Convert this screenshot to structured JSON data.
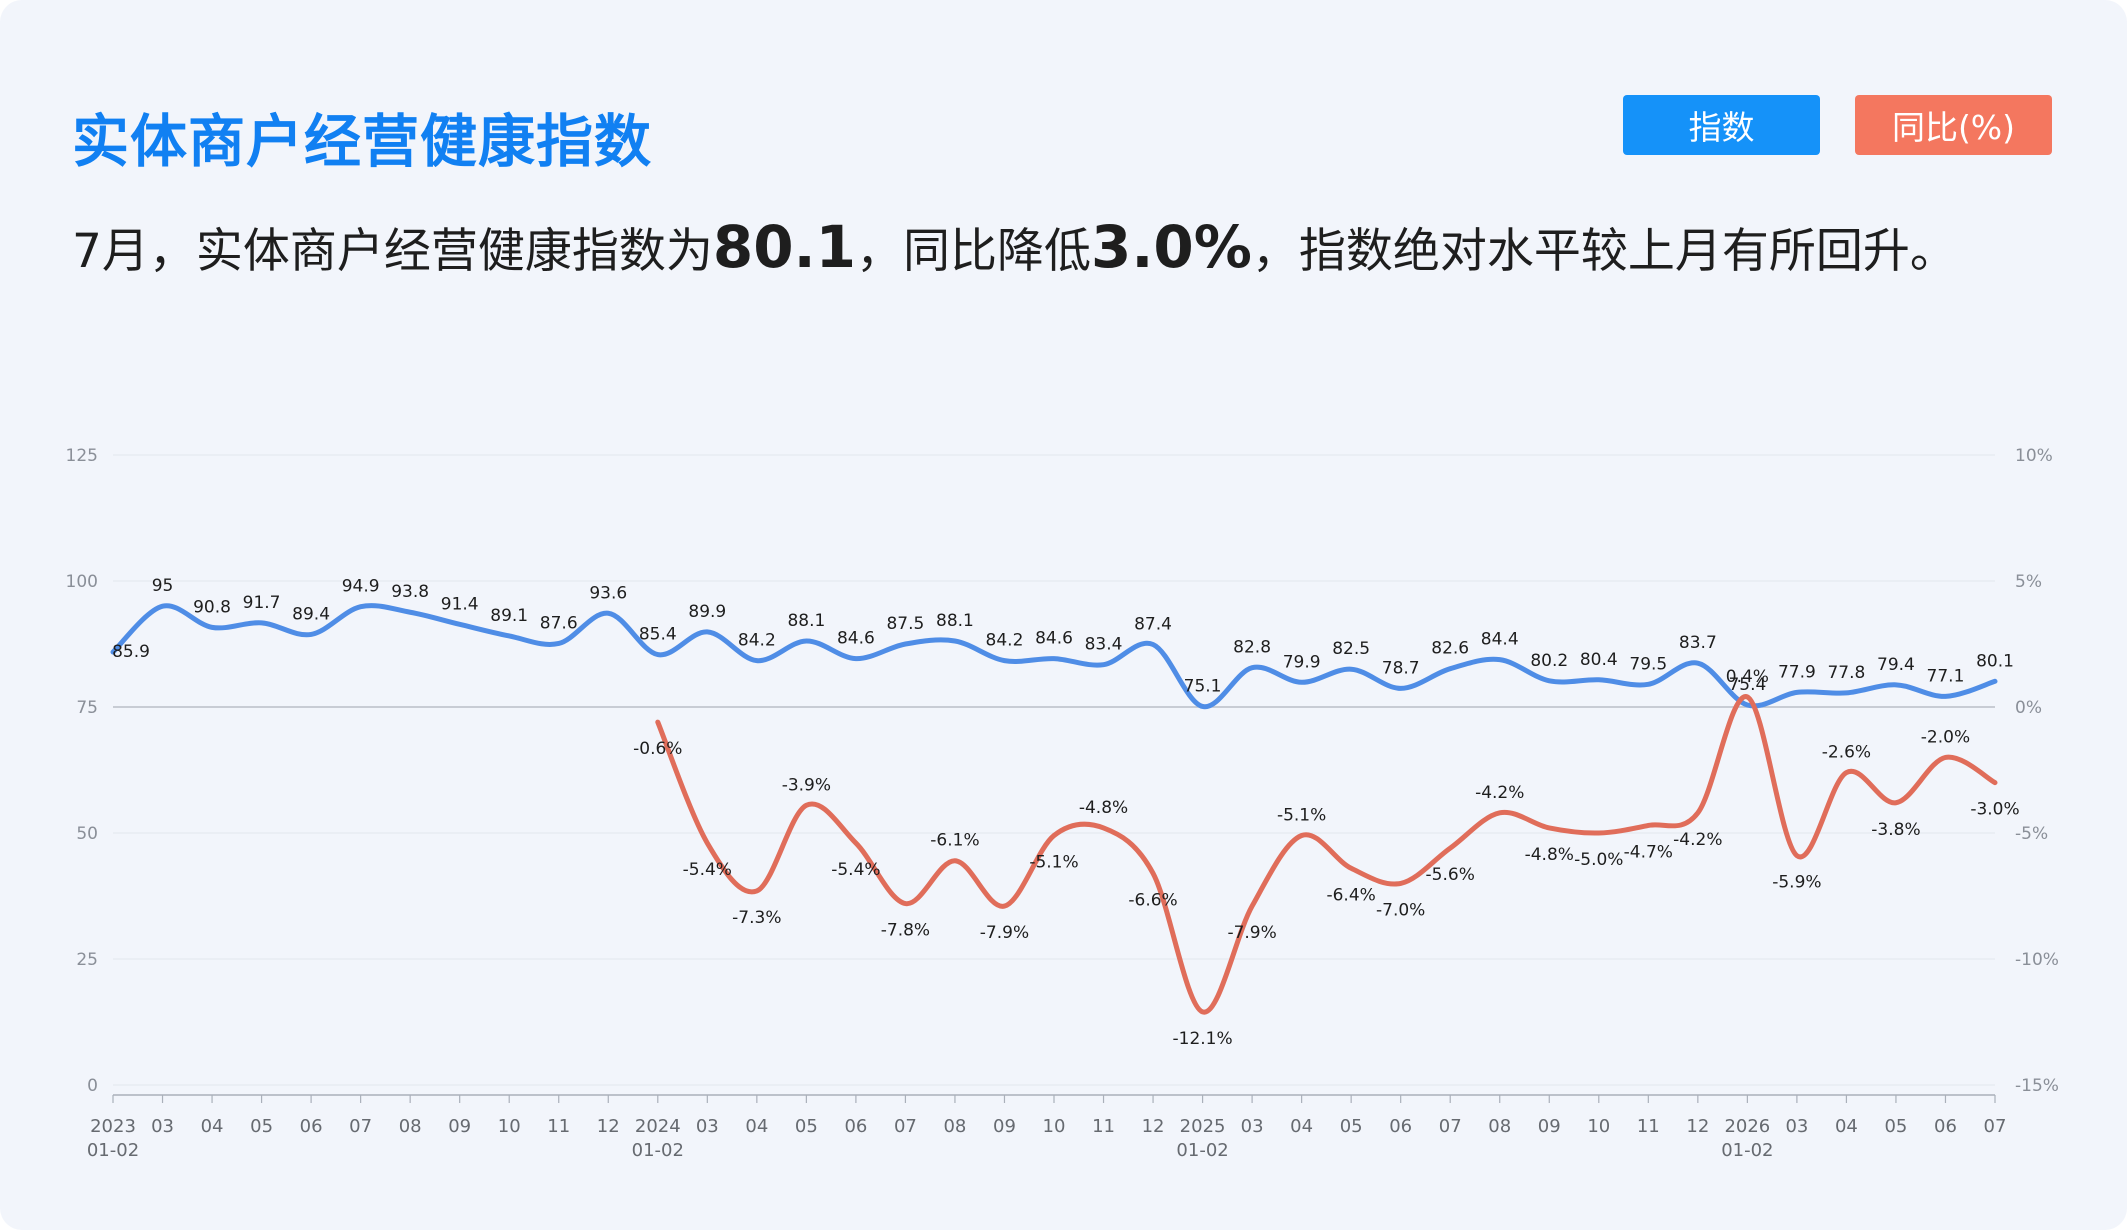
{
  "header": {
    "title": "实体商户经营健康指数",
    "buttons": {
      "index": "指数",
      "yoy": "同比(%)"
    }
  },
  "headline": {
    "p1": "7月，实体商户经营健康指数为",
    "value": "80.1",
    "p2": "，同比降低",
    "change": "3.0%",
    "p3": "，指数绝对水平较上月有所回升。"
  },
  "colors": {
    "index_line": "#4f8de6",
    "yoy_line": "#e06d5a",
    "title": "#1180f2",
    "btn_index": "#1592f9",
    "btn_yoy": "#f4775f"
  },
  "chart_data": {
    "type": "line",
    "categories": [
      "2023|01-02",
      "03",
      "04",
      "05",
      "06",
      "07",
      "08",
      "09",
      "10",
      "11",
      "12",
      "2024|01-02",
      "03",
      "04",
      "05",
      "06",
      "07",
      "08",
      "09",
      "10",
      "11",
      "12",
      "2025|01-02",
      "03",
      "04",
      "05",
      "06",
      "07",
      "08",
      "09",
      "10",
      "11",
      "12",
      "2026|01-02",
      "03",
      "04",
      "05",
      "06",
      "07"
    ],
    "y_left": {
      "ticks": [
        0,
        25,
        50,
        75,
        100,
        125
      ],
      "range": [
        0,
        125
      ]
    },
    "y_right": {
      "ticks": [
        "-15%",
        "-10%",
        "-5%",
        "0%",
        "5%",
        "10%"
      ],
      "range": [
        -15,
        10
      ]
    },
    "grid": "horizontal",
    "series": [
      {
        "axis": "left",
        "values": [
          85.9,
          95,
          90.8,
          91.7,
          89.4,
          94.9,
          93.8,
          91.4,
          89.1,
          87.6,
          93.6,
          85.4,
          89.9,
          84.2,
          88.1,
          84.6,
          87.5,
          88.1,
          84.2,
          84.6,
          83.4,
          87.4,
          75.1,
          82.8,
          79.9,
          82.5,
          78.7,
          82.6,
          84.4,
          80.2,
          80.4,
          79.5,
          83.7,
          75.4,
          77.9,
          77.8,
          79.4,
          77.1,
          80.1
        ],
        "labels": [
          "85.9",
          "95",
          "90.8",
          "91.7",
          "89.4",
          "94.9",
          "93.8",
          "91.4",
          "89.1",
          "87.6",
          "93.6",
          "85.4",
          "89.9",
          "84.2",
          "88.1",
          "84.6",
          "87.5",
          "88.1",
          "84.2",
          "84.6",
          "83.4",
          "87.4",
          "75.1",
          "82.8",
          "79.9",
          "82.5",
          "78.7",
          "82.6",
          "84.4",
          "80.2",
          "80.4",
          "79.5",
          "83.7",
          "75.4",
          "77.9",
          "77.8",
          "79.4",
          "77.1",
          "80.1"
        ]
      },
      {
        "axis": "right",
        "values": [
          null,
          null,
          null,
          null,
          null,
          null,
          null,
          null,
          null,
          null,
          null,
          -0.6,
          -5.4,
          -7.3,
          -3.9,
          -5.4,
          -7.8,
          -6.1,
          -7.9,
          -5.1,
          -4.8,
          -6.6,
          -12.1,
          -7.9,
          -5.1,
          -6.4,
          -7.0,
          -5.6,
          -4.2,
          -4.8,
          -5.0,
          -4.7,
          -4.2,
          0.4,
          -5.9,
          -2.6,
          -3.8,
          -2.0,
          -3.0
        ],
        "labels": [
          null,
          null,
          null,
          null,
          null,
          null,
          null,
          null,
          null,
          null,
          null,
          "-0.6%",
          "-5.4%",
          "-7.3%",
          "-3.9%",
          "-5.4%",
          "-7.8%",
          "-6.1%",
          "-7.9%",
          "-5.1%",
          "-4.8%",
          "-6.6%",
          "-12.1%",
          "-7.9%",
          "-5.1%",
          "-6.4%",
          "-7.0%",
          "-5.6%",
          "-4.2%",
          "-4.8%",
          "-5.0%",
          "-4.7%",
          "-4.2%",
          "0.4%",
          "-5.9%",
          "-2.6%",
          "-3.8%",
          "-2.0%",
          "-3.0%"
        ]
      }
    ]
  }
}
